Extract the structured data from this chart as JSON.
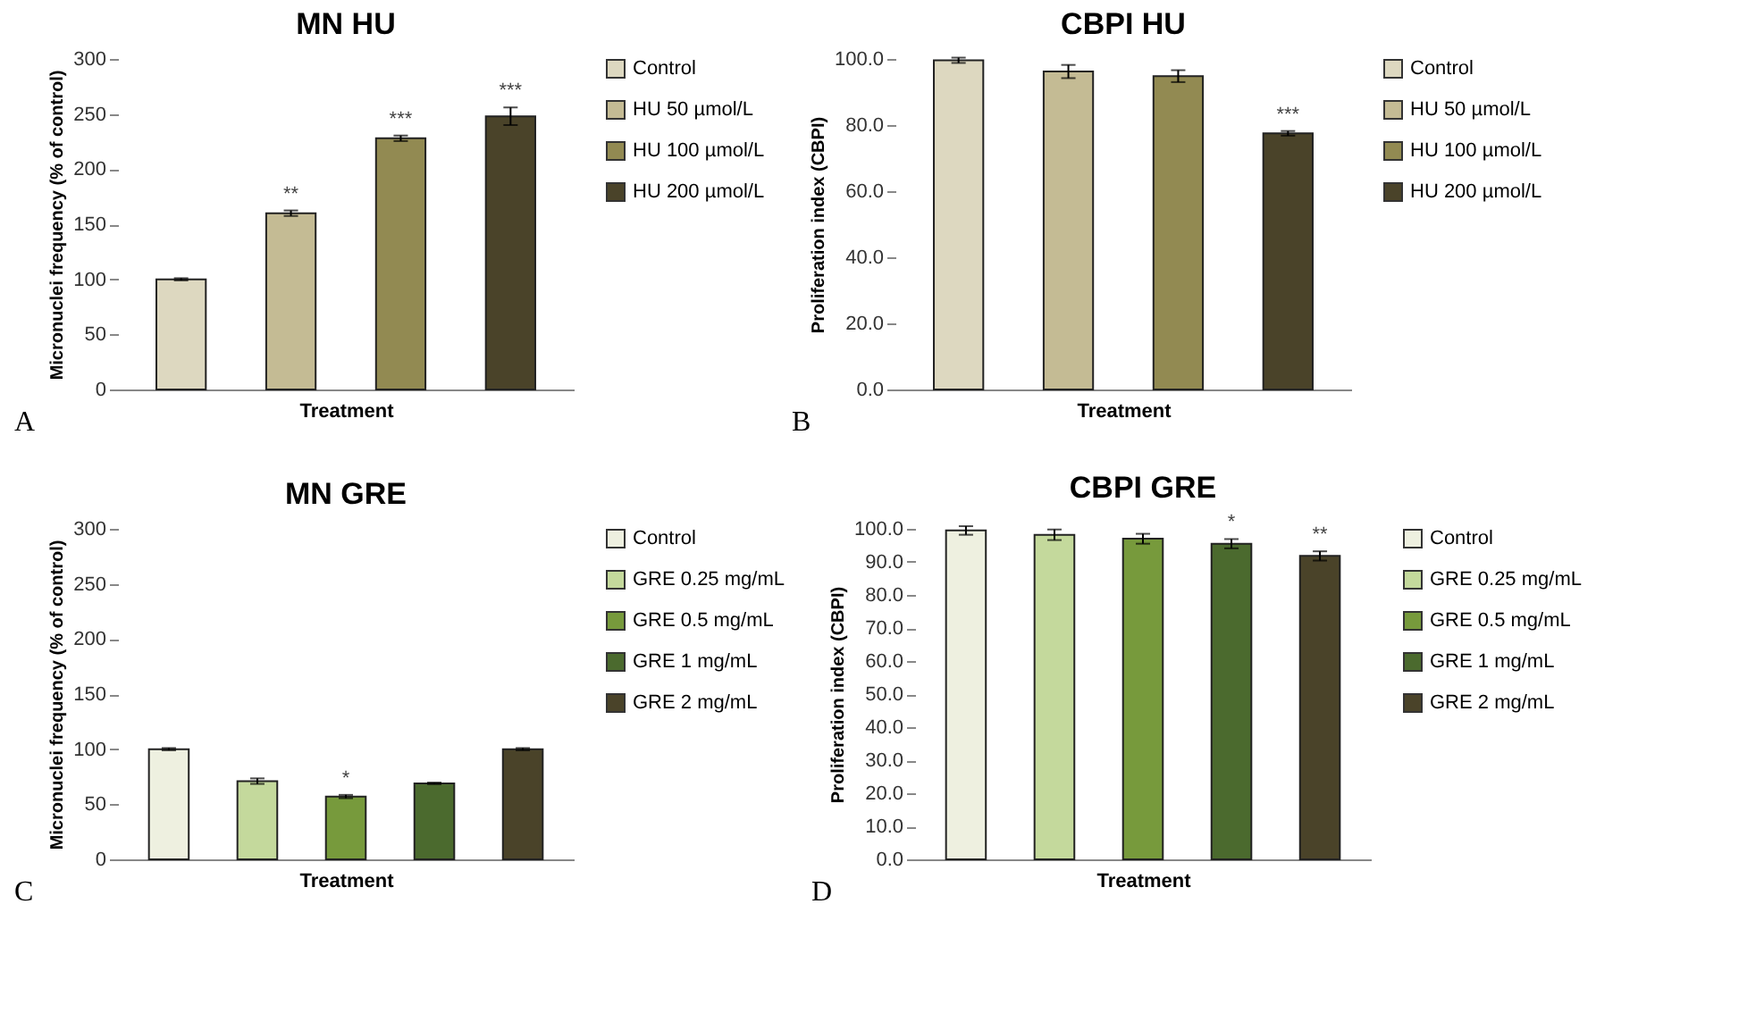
{
  "chart_data": [
    {
      "type": "bar",
      "title": "MN HU",
      "xlabel": "Treatment",
      "ylabel": "Micronuclei frequency (% of control)",
      "categories": [
        null,
        null,
        null,
        null
      ],
      "ylim": [
        0,
        300
      ],
      "yticks": [
        0,
        50,
        100,
        150,
        200,
        250,
        300
      ],
      "grid": false,
      "legend": "right",
      "tick_labels": "y",
      "series": [
        {
          "name": "Control",
          "color": "#ddd8c0",
          "values": [
            100,
            null,
            null,
            null
          ],
          "errors": [
            1,
            null,
            null,
            null
          ]
        },
        {
          "name": "HU 50 µmol/L",
          "color": "#c4bb94",
          "values": [
            null,
            160,
            null,
            null
          ],
          "errors": [
            null,
            2.5,
            null,
            null
          ]
        },
        {
          "name": "HU 100 µmol/L",
          "color": "#928a52",
          "values": [
            null,
            null,
            228,
            null
          ],
          "errors": [
            null,
            null,
            2.5,
            null
          ]
        },
        {
          "name": "HU 200 µmol/L",
          "color": "#4a4329",
          "values": [
            null,
            null,
            null,
            248
          ],
          "errors": [
            null,
            null,
            null,
            8
          ]
        }
      ],
      "annotations": [
        {
          "text": "**",
          "y": 160
        },
        {
          "text": "***",
          "y": 228
        },
        {
          "text": "***",
          "y": 248
        },
        "A"
      ]
    },
    {
      "type": "bar",
      "title": "CBPI HU",
      "xlabel": "Treatment",
      "ylabel": "Proliferation index (CBPI)",
      "categories": [
        null,
        null,
        null,
        null
      ],
      "ylim": [
        0,
        100
      ],
      "yticks": [
        {
          "value": 0,
          "label": "0.0"
        },
        {
          "value": 20,
          "label": "20.0"
        },
        {
          "value": 40,
          "label": "40.0"
        },
        {
          "value": 60,
          "label": "60.0"
        },
        {
          "value": 80,
          "label": "80.0"
        },
        {
          "value": 100,
          "label": "100.0"
        }
      ],
      "grid": false,
      "legend": "right",
      "tick_labels": "y",
      "series": [
        {
          "name": "Control",
          "color": "#ddd8c0",
          "values": [
            99.6,
            null,
            null,
            null
          ],
          "errors": [
            0.8,
            null,
            null,
            null
          ]
        },
        {
          "name": "HU 50 µmol/L",
          "color": "#c4bb94",
          "values": [
            null,
            96.2,
            null,
            null
          ],
          "errors": [
            null,
            2,
            null,
            null
          ]
        },
        {
          "name": "HU 100 µmol/L",
          "color": "#928a52",
          "values": [
            null,
            null,
            94.8,
            null
          ],
          "errors": [
            null,
            null,
            1.8,
            null
          ]
        },
        {
          "name": "HU 200 µmol/L",
          "color": "#4a4329",
          "values": [
            null,
            null,
            null,
            77.5
          ],
          "errors": [
            null,
            null,
            null,
            0.7
          ]
        }
      ],
      "annotations": [
        {
          "text": "***",
          "y": 77.5
        },
        "B"
      ]
    },
    {
      "type": "bar",
      "title": "MN GRE",
      "xlabel": "Treatment",
      "ylabel": "Micronuclei frequency (% of control)",
      "categories": [
        null,
        null,
        null,
        null,
        null
      ],
      "ylim": [
        0,
        300
      ],
      "yticks": [
        0,
        50,
        100,
        150,
        200,
        250,
        300
      ],
      "grid": false,
      "legend": "right",
      "tick_labels": "y",
      "series": [
        {
          "name": "Control",
          "color": "#eef0e0",
          "values": [
            100,
            null,
            null,
            null,
            null
          ],
          "errors": [
            1,
            null,
            null,
            null,
            null
          ]
        },
        {
          "name": "GRE 0.25 mg/mL",
          "color": "#c4d99c",
          "values": [
            null,
            71,
            null,
            null,
            null
          ],
          "errors": [
            null,
            2.5,
            null,
            null,
            null
          ]
        },
        {
          "name": "GRE 0.5 mg/mL",
          "color": "#779a3c",
          "values": [
            null,
            null,
            57,
            null,
            null
          ],
          "errors": [
            null,
            null,
            1.5,
            null,
            null
          ]
        },
        {
          "name": "GRE 1 mg/mL",
          "color": "#4b6a2e",
          "values": [
            null,
            null,
            null,
            69,
            null
          ],
          "errors": [
            null,
            null,
            null,
            0.7,
            null
          ]
        },
        {
          "name": "GRE 2 mg/mL",
          "color": "#4a4329",
          "values": [
            null,
            null,
            null,
            null,
            100
          ],
          "errors": [
            null,
            null,
            null,
            null,
            1
          ]
        }
      ],
      "annotations": [
        {
          "text": "*",
          "y": 57
        },
        "C"
      ]
    },
    {
      "type": "bar",
      "title": "CBPI GRE",
      "xlabel": "Treatment",
      "ylabel": "Proliferation index (CBPI)",
      "categories": [
        null,
        null,
        null,
        null,
        null
      ],
      "ylim": [
        0,
        100
      ],
      "yticks": [
        {
          "value": 0,
          "label": "0.0"
        },
        {
          "value": 10,
          "label": "10.0"
        },
        {
          "value": 20,
          "label": "20.0"
        },
        {
          "value": 30,
          "label": "30.0"
        },
        {
          "value": 40,
          "label": "40.0"
        },
        {
          "value": 50,
          "label": "50.0"
        },
        {
          "value": 60,
          "label": "60.0"
        },
        {
          "value": 70,
          "label": "70.0"
        },
        {
          "value": 80,
          "label": "80.0"
        },
        {
          "value": 90,
          "label": "90.0"
        },
        {
          "value": 100,
          "label": "100.0"
        }
      ],
      "grid": false,
      "legend": "right",
      "tick_labels": "y",
      "series": [
        {
          "name": "Control",
          "color": "#eef0e0",
          "values": [
            99.5,
            null,
            null,
            null,
            null
          ],
          "errors": [
            1.3,
            null,
            null,
            null,
            null
          ]
        },
        {
          "name": "GRE 0.25 mg/mL",
          "color": "#c4d99c",
          "values": [
            null,
            98.2,
            null,
            null,
            null
          ],
          "errors": [
            null,
            1.6,
            null,
            null,
            null
          ]
        },
        {
          "name": "GRE 0.5 mg/mL",
          "color": "#779a3c",
          "values": [
            null,
            null,
            97,
            null,
            null
          ],
          "errors": [
            null,
            null,
            1.5,
            null,
            null
          ]
        },
        {
          "name": "GRE 1 mg/mL",
          "color": "#4b6a2e",
          "values": [
            null,
            null,
            null,
            95.5,
            null
          ],
          "errors": [
            null,
            null,
            null,
            1.4,
            null
          ]
        },
        {
          "name": "GRE 2 mg/mL",
          "color": "#4a4329",
          "values": [
            null,
            null,
            null,
            null,
            91.8
          ],
          "errors": [
            null,
            null,
            null,
            null,
            1.4
          ]
        }
      ],
      "annotations": [
        {
          "text": "*",
          "y": 95.5
        },
        {
          "text": "**",
          "y": 91.8
        },
        "D"
      ]
    }
  ]
}
